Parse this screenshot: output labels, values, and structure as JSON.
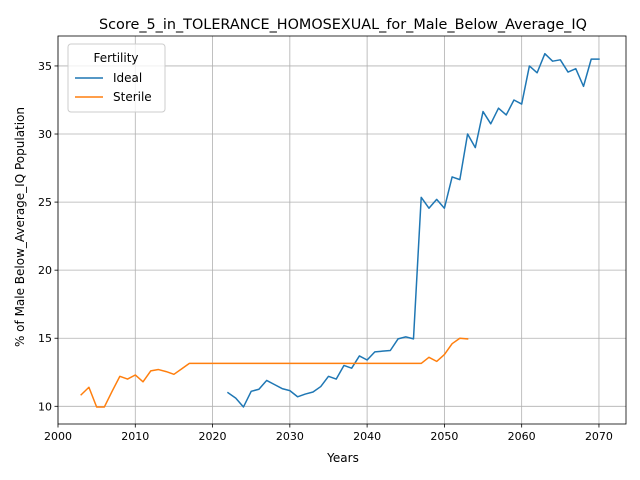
{
  "chart_data": {
    "type": "line",
    "title": "Score_5_in_TOLERANCE_HOMOSEXUAL_for_Male_Below_Average_IQ",
    "xlabel": "Years",
    "ylabel": "% of Male Below_Average_IQ Population",
    "xlim": [
      2000,
      2073.5
    ],
    "ylim": [
      8.7,
      37.2
    ],
    "xticks": [
      2000,
      2010,
      2020,
      2030,
      2040,
      2050,
      2060,
      2070
    ],
    "yticks": [
      10,
      15,
      20,
      25,
      30,
      35
    ],
    "grid": true,
    "legend": {
      "title": "Fertility",
      "position": "top-left"
    },
    "series": [
      {
        "name": "Ideal",
        "color": "#1f77b4",
        "points": [
          [
            2022,
            11.0
          ],
          [
            2023,
            10.6
          ],
          [
            2024,
            9.95
          ],
          [
            2025,
            11.1
          ],
          [
            2026,
            11.25
          ],
          [
            2027,
            11.9
          ],
          [
            2028,
            11.6
          ],
          [
            2029,
            11.3
          ],
          [
            2030,
            11.15
          ],
          [
            2031,
            10.7
          ],
          [
            2032,
            10.9
          ],
          [
            2033,
            11.05
          ],
          [
            2034,
            11.45
          ],
          [
            2035,
            12.2
          ],
          [
            2036,
            12.0
          ],
          [
            2037,
            13.0
          ],
          [
            2038,
            12.8
          ],
          [
            2039,
            13.7
          ],
          [
            2040,
            13.4
          ],
          [
            2041,
            14.0
          ],
          [
            2042,
            14.05
          ],
          [
            2043,
            14.1
          ],
          [
            2044,
            14.95
          ],
          [
            2045,
            15.1
          ],
          [
            2046,
            14.95
          ],
          [
            2047,
            25.35
          ],
          [
            2048,
            24.55
          ],
          [
            2049,
            25.2
          ],
          [
            2050,
            24.55
          ],
          [
            2051,
            26.85
          ],
          [
            2052,
            26.65
          ],
          [
            2053,
            30.0
          ],
          [
            2054,
            29.0
          ],
          [
            2055,
            31.65
          ],
          [
            2056,
            30.75
          ],
          [
            2057,
            31.9
          ],
          [
            2058,
            31.4
          ],
          [
            2059,
            32.5
          ],
          [
            2060,
            32.2
          ],
          [
            2061,
            35.0
          ],
          [
            2062,
            34.5
          ],
          [
            2063,
            35.9
          ],
          [
            2064,
            35.35
          ],
          [
            2065,
            35.45
          ],
          [
            2066,
            34.55
          ],
          [
            2067,
            34.8
          ],
          [
            2068,
            33.5
          ],
          [
            2069,
            35.5
          ],
          [
            2070,
            35.5
          ]
        ]
      },
      {
        "name": "Sterile",
        "color": "#ff7f0e",
        "points": [
          [
            2003,
            10.85
          ],
          [
            2004,
            11.4
          ],
          [
            2005,
            9.95
          ],
          [
            2006,
            9.95
          ],
          [
            2007,
            11.1
          ],
          [
            2008,
            12.2
          ],
          [
            2009,
            12.0
          ],
          [
            2010,
            12.3
          ],
          [
            2011,
            11.8
          ],
          [
            2012,
            12.6
          ],
          [
            2013,
            12.7
          ],
          [
            2014,
            12.55
          ],
          [
            2015,
            12.35
          ],
          [
            2016,
            12.75
          ],
          [
            2017,
            13.15
          ],
          [
            2018,
            13.15
          ],
          [
            2019,
            13.15
          ],
          [
            2020,
            13.15
          ],
          [
            2021,
            13.15
          ],
          [
            2022,
            13.15
          ],
          [
            2023,
            13.15
          ],
          [
            2024,
            13.15
          ],
          [
            2025,
            13.15
          ],
          [
            2026,
            13.15
          ],
          [
            2027,
            13.15
          ],
          [
            2028,
            13.15
          ],
          [
            2029,
            13.15
          ],
          [
            2030,
            13.15
          ],
          [
            2031,
            13.15
          ],
          [
            2032,
            13.15
          ],
          [
            2033,
            13.15
          ],
          [
            2034,
            13.15
          ],
          [
            2035,
            13.15
          ],
          [
            2036,
            13.15
          ],
          [
            2037,
            13.15
          ],
          [
            2038,
            13.15
          ],
          [
            2039,
            13.15
          ],
          [
            2040,
            13.15
          ],
          [
            2041,
            13.15
          ],
          [
            2042,
            13.15
          ],
          [
            2043,
            13.15
          ],
          [
            2044,
            13.15
          ],
          [
            2045,
            13.15
          ],
          [
            2046,
            13.15
          ],
          [
            2047,
            13.15
          ],
          [
            2048,
            13.6
          ],
          [
            2049,
            13.3
          ],
          [
            2050,
            13.8
          ],
          [
            2051,
            14.6
          ],
          [
            2052,
            15.0
          ],
          [
            2053,
            14.95
          ]
        ]
      }
    ]
  }
}
